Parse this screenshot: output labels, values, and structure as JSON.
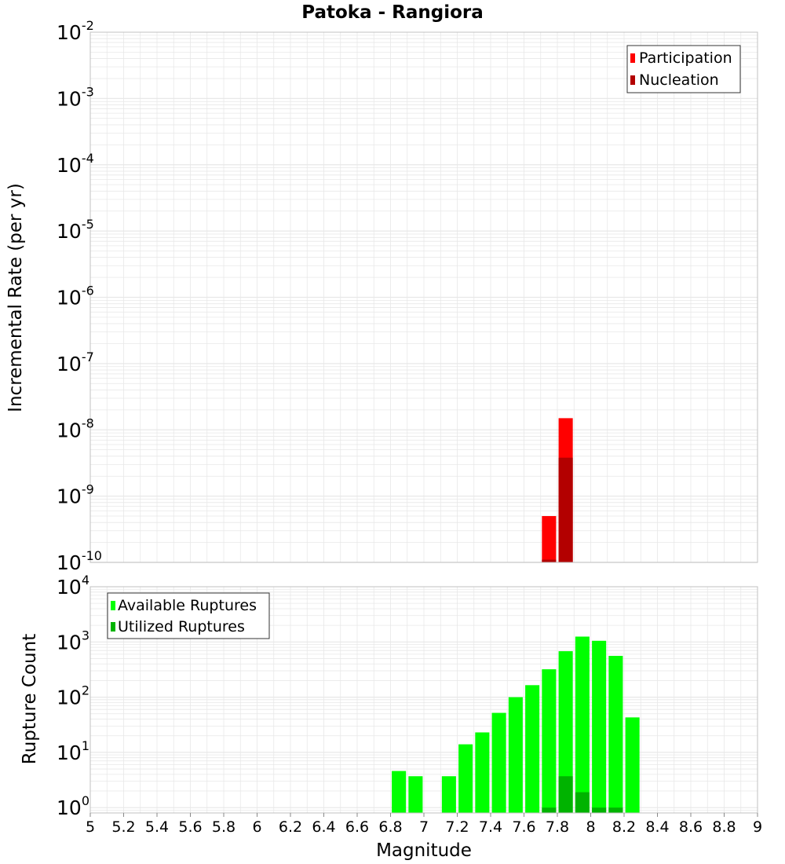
{
  "title": "Patoka - Rangiora",
  "colors": {
    "participation": "#ff0000",
    "nucleation": "#b30000",
    "available": "#00ff00",
    "utilized": "#00b300",
    "grid": "#e8e8e8",
    "frame": "#c0c0c0"
  },
  "chart_data": [
    {
      "type": "bar",
      "name": "rate-panel",
      "ylabel": "Incremental Rate (per yr)",
      "yscale": "log",
      "ylim": [
        1e-10,
        0.01
      ],
      "yticks": [
        {
          "exp": "-10"
        },
        {
          "exp": "-9"
        },
        {
          "exp": "-8"
        },
        {
          "exp": "-7"
        },
        {
          "exp": "-6"
        },
        {
          "exp": "-5"
        },
        {
          "exp": "-4"
        },
        {
          "exp": "-3"
        },
        {
          "exp": "-2"
        }
      ],
      "tick_base": "10",
      "legend": {
        "position": "top-right",
        "entries": [
          "Participation",
          "Nucleation"
        ]
      },
      "series": [
        {
          "name": "Participation",
          "points": [
            {
              "x": 7.75,
              "y": 5e-10
            },
            {
              "x": 7.85,
              "y": 1.5e-08
            }
          ]
        },
        {
          "name": "Nucleation",
          "points": [
            {
              "x": 7.75,
              "y": 1.1e-10
            },
            {
              "x": 7.85,
              "y": 3.8e-09
            }
          ]
        }
      ]
    },
    {
      "type": "bar",
      "name": "count-panel",
      "ylabel": "Rupture Count",
      "xlabel": "Magnitude",
      "yscale": "log",
      "ylim": [
        0.8,
        10000
      ],
      "yticks": [
        {
          "exp": "0"
        },
        {
          "exp": "1"
        },
        {
          "exp": "2"
        },
        {
          "exp": "3"
        },
        {
          "exp": "4"
        }
      ],
      "tick_base": "10",
      "xlim": [
        5,
        9
      ],
      "xticks": [
        "5",
        "5.2",
        "5.4",
        "5.6",
        "5.8",
        "6",
        "6.2",
        "6.4",
        "6.6",
        "6.8",
        "7",
        "7.2",
        "7.4",
        "7.6",
        "7.8",
        "8",
        "8.2",
        "8.4",
        "8.6",
        "8.8",
        "9"
      ],
      "legend": {
        "position": "top-left",
        "entries": [
          "Available Ruptures",
          "Utilized Ruptures"
        ]
      },
      "series": [
        {
          "name": "Available Ruptures",
          "points": [
            {
              "x": 6.85,
              "y": 4.6
            },
            {
              "x": 6.95,
              "y": 3.7
            },
            {
              "x": 7.15,
              "y": 3.7
            },
            {
              "x": 7.25,
              "y": 14
            },
            {
              "x": 7.35,
              "y": 23
            },
            {
              "x": 7.45,
              "y": 52
            },
            {
              "x": 7.55,
              "y": 100
            },
            {
              "x": 7.65,
              "y": 165
            },
            {
              "x": 7.75,
              "y": 320
            },
            {
              "x": 7.85,
              "y": 680
            },
            {
              "x": 7.95,
              "y": 1250
            },
            {
              "x": 8.05,
              "y": 1050
            },
            {
              "x": 8.15,
              "y": 560
            },
            {
              "x": 8.25,
              "y": 43
            }
          ]
        },
        {
          "name": "Utilized Ruptures",
          "points": [
            {
              "x": 7.75,
              "y": 1
            },
            {
              "x": 7.85,
              "y": 3.7
            },
            {
              "x": 7.95,
              "y": 1.9
            },
            {
              "x": 8.05,
              "y": 1
            },
            {
              "x": 8.15,
              "y": 1
            }
          ]
        }
      ]
    }
  ]
}
